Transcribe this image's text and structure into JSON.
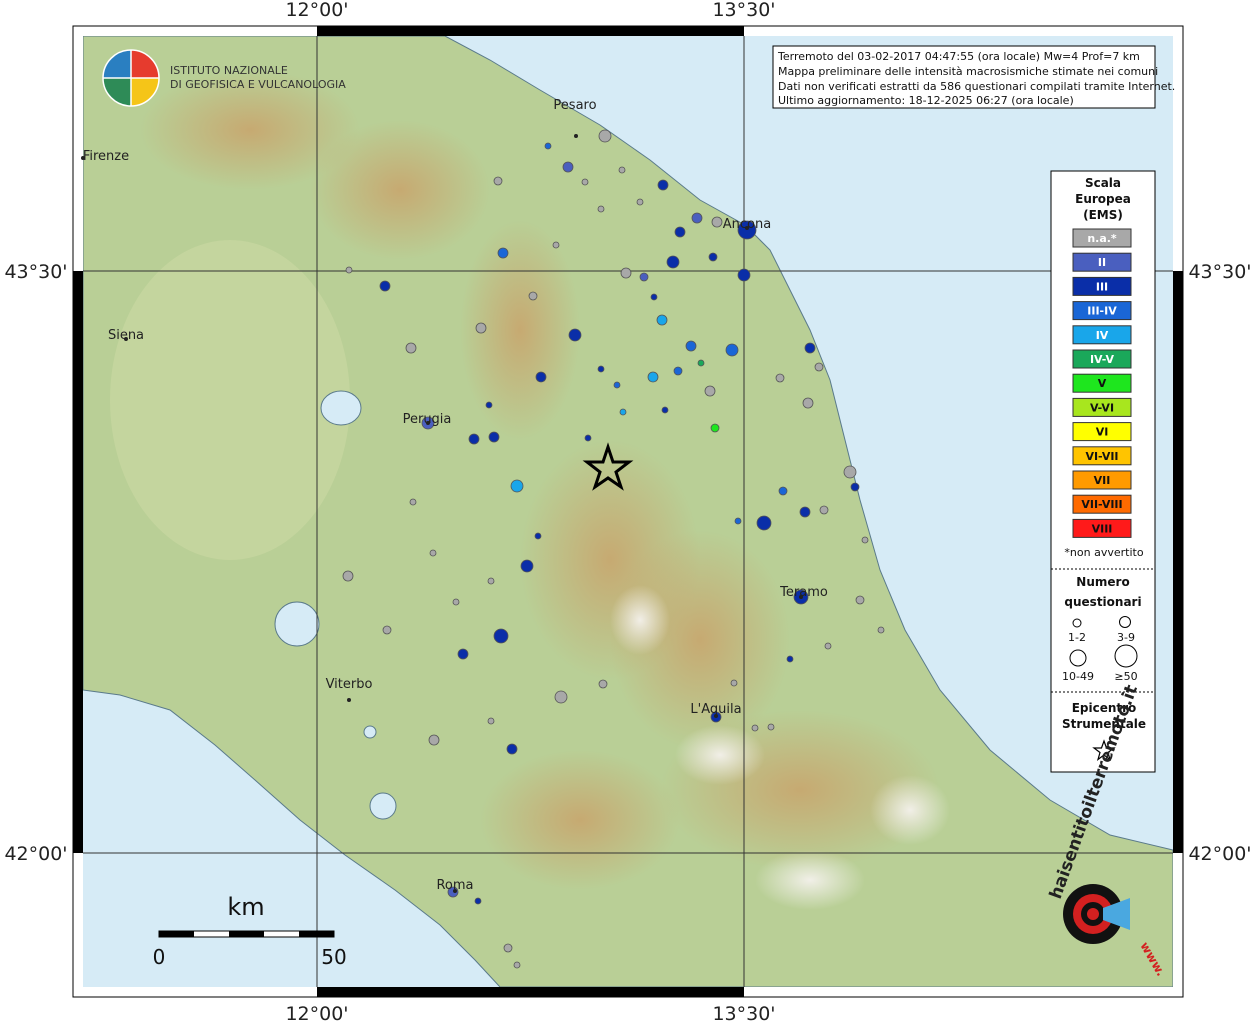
{
  "map": {
    "header": {
      "lines": [
        "Terremoto del 03-02-2017 04:47:55 (ora locale) Mw=4 Prof=7 km",
        "Mappa preliminare delle intensità macrosismiche stimate nei comuni",
        "Dati non verificati estratti da 586 questionari compilati tramite Internet.",
        "Ultimo aggiornamento: 18-12-2025 06:27 (ora locale)"
      ]
    },
    "logo": {
      "line1": "ISTITUTO NAZIONALE",
      "line2": "DI GEOFISICA E VULCANOLOGIA"
    },
    "axes": {
      "top": [
        "12°00'",
        "13°30'"
      ],
      "bottom": [
        "12°00'",
        "13°30'"
      ],
      "left": [
        "43°30'",
        "42°00'"
      ],
      "right": [
        "43°30'",
        "42°00'"
      ]
    },
    "cities": [
      "Pesaro",
      "Firenze",
      "Ancona",
      "Siena",
      "Perugia",
      "Teramo",
      "Viterbo",
      "L'Aquila",
      "Roma"
    ],
    "legend": {
      "title": [
        "Scala",
        "Europea",
        "(EMS)"
      ],
      "classes": [
        "n.a.*",
        "II",
        "III",
        "III-IV",
        "IV",
        "IV-V",
        "V",
        "V-VI",
        "VI",
        "VI-VII",
        "VII",
        "VII-VIII",
        "VIII"
      ],
      "note": "*non avvertito",
      "size_title": [
        "Numero",
        "questionari"
      ],
      "sizes": [
        "1-2",
        "3-9",
        "10-49",
        "≥50"
      ],
      "epicenter_title": [
        "Epicentro",
        "Strumentale"
      ]
    },
    "scale": {
      "unit": "km",
      "start": "0",
      "end": "50"
    },
    "brand": {
      "site": "haisentitoilterremoto.it",
      "prefix": "www."
    }
  }
}
